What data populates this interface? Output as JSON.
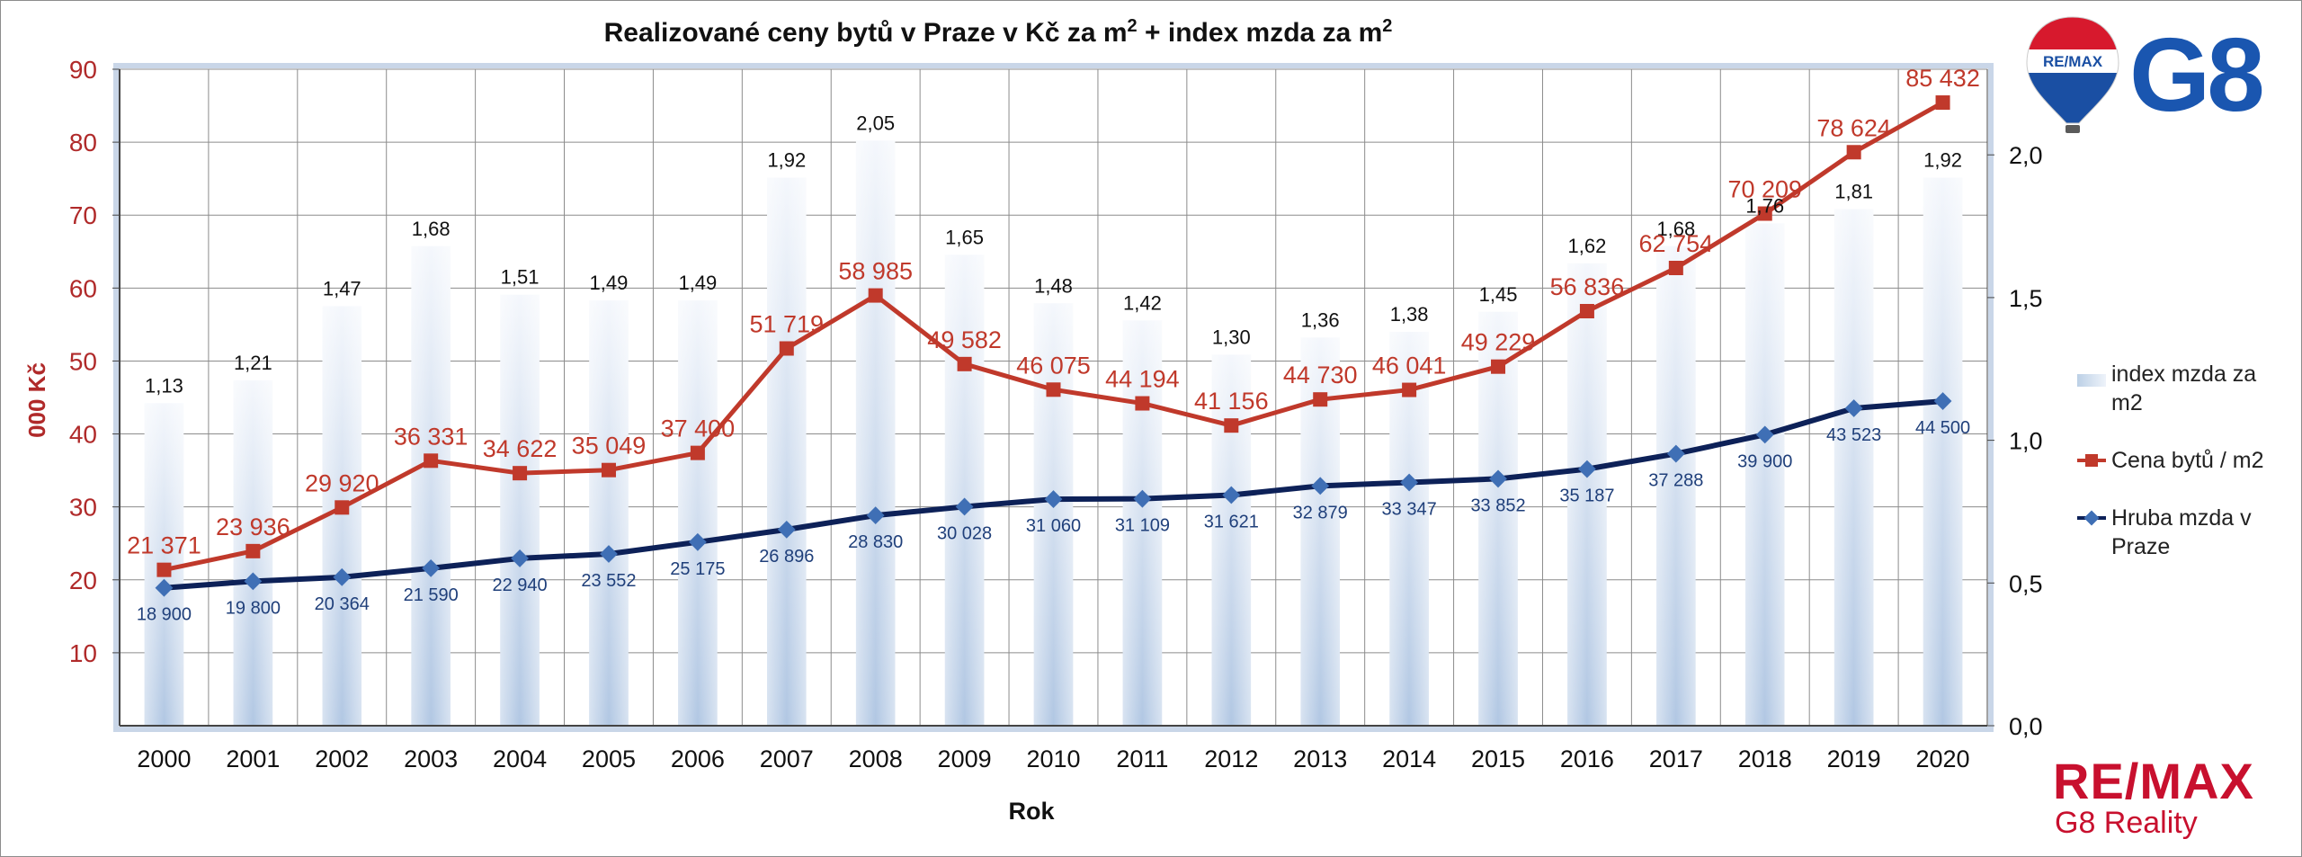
{
  "chart_data": {
    "type": "bar+line",
    "title": "Realizované ceny bytů v Praze v Kč za m",
    "title_sup1": "2",
    "title_mid": " + index mzda za m",
    "title_sup2": "2",
    "xlabel": "Rok",
    "ylabel": "000 Kč",
    "ylim": [
      0,
      90
    ],
    "y_ticks": [
      "10",
      "20",
      "30",
      "40",
      "50",
      "60",
      "70",
      "80",
      "90"
    ],
    "y2lim": [
      0,
      2.3
    ],
    "y2_ticks": [
      "0,0",
      "0,5",
      "1,0",
      "1,5",
      "2,0"
    ],
    "grid": true,
    "legend_position": "right",
    "categories": [
      "2000",
      "2001",
      "2002",
      "2003",
      "2004",
      "2005",
      "2006",
      "2007",
      "2008",
      "2009",
      "2010",
      "2011",
      "2012",
      "2013",
      "2014",
      "2015",
      "2016",
      "2017",
      "2018",
      "2019",
      "2020"
    ],
    "series": [
      {
        "name": "index mzda za m2",
        "kind": "bar",
        "axis": "right",
        "color": "#b8cde6",
        "values": [
          1.13,
          1.21,
          1.47,
          1.68,
          1.51,
          1.49,
          1.49,
          1.92,
          2.05,
          1.65,
          1.48,
          1.42,
          1.3,
          1.36,
          1.38,
          1.45,
          1.62,
          1.68,
          1.76,
          1.81,
          1.92
        ],
        "labels": [
          "1,13",
          "1,21",
          "1,47",
          "1,68",
          "1,51",
          "1,49",
          "1,49",
          "1,92",
          "2,05",
          "1,65",
          "1,48",
          "1,42",
          "1,30",
          "1,36",
          "1,38",
          "1,45",
          "1,62",
          "1,68",
          "1,76",
          "1,81",
          "1,92"
        ]
      },
      {
        "name": "Cena bytů / m2",
        "kind": "line",
        "axis": "left",
        "color": "#c0392b",
        "values": [
          21.371,
          23.936,
          29.92,
          36.331,
          34.622,
          35.049,
          37.4,
          51.719,
          58.985,
          49.582,
          46.075,
          44.194,
          41.156,
          44.73,
          46.041,
          49.229,
          56.836,
          62.754,
          70.209,
          78.624,
          85.432
        ],
        "labels": [
          "21 371",
          "23 936",
          "29 920",
          "36 331",
          "34 622",
          "35 049",
          "37 400",
          "51 719",
          "58 985",
          "49 582",
          "46 075",
          "44 194",
          "41 156",
          "44 730",
          "46 041",
          "49 229",
          "56 836",
          "62 754",
          "70 209",
          "78 624",
          "85 432"
        ]
      },
      {
        "name": "Hruba mzda v Praze",
        "kind": "line",
        "axis": "left",
        "color": "#0d2158",
        "values": [
          18.9,
          19.8,
          20.364,
          21.59,
          22.94,
          23.552,
          25.175,
          26.896,
          28.83,
          30.028,
          31.06,
          31.109,
          31.621,
          32.879,
          33.347,
          33.852,
          35.187,
          37.288,
          39.9,
          43.523,
          44.5
        ],
        "labels": [
          "18 900",
          "19 800",
          "20 364",
          "21 590",
          "22 940",
          "23 552",
          "25 175",
          "26 896",
          "28 830",
          "30 028",
          "31 060",
          "31 109",
          "31 621",
          "32 879",
          "33 347",
          "33 852",
          "35 187",
          "37 288",
          "39 900",
          "43 523",
          "44 500"
        ]
      }
    ]
  },
  "legend": {
    "index_label": "index mzda za m2",
    "price_label": "Cena bytů / m2",
    "wage_label": "Hruba mzda v Praze"
  },
  "branding": {
    "balloon_text": "RE/MAX",
    "g8_text": "G8",
    "remax_text": "RE/MAX",
    "remax_sub": "G8 Reality",
    "brand_red": "#c8102e",
    "brand_blue": "#1a56b0"
  }
}
